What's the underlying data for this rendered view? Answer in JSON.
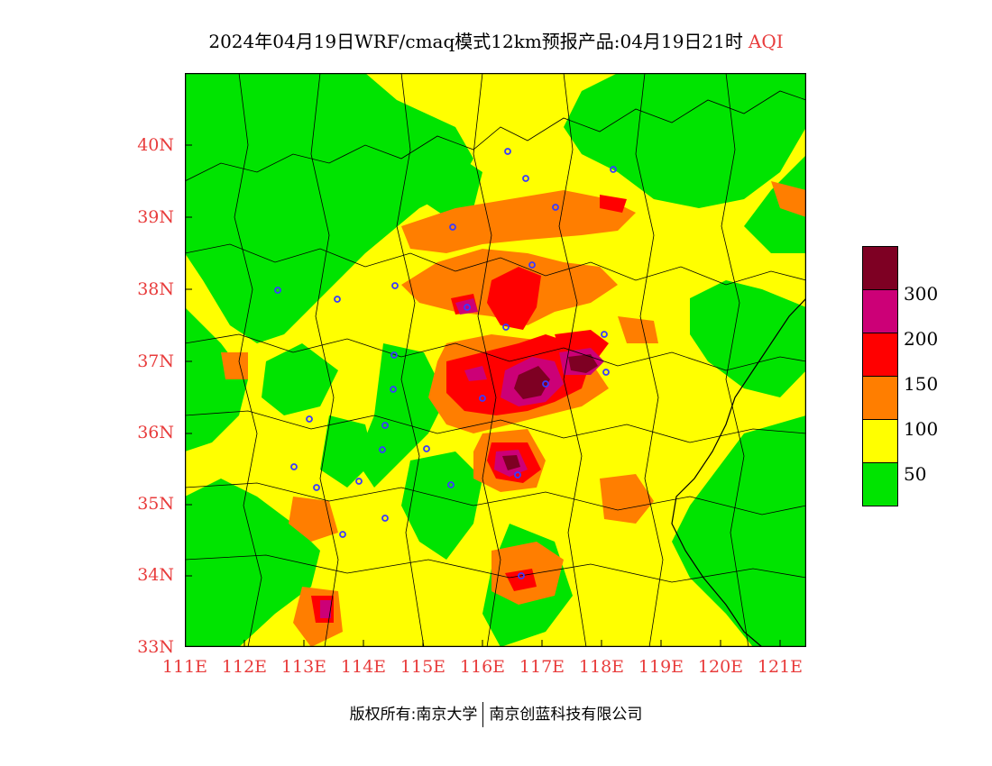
{
  "title": {
    "main": "2024年04月19日WRF/cmaq模式12km预报产品:04月19日21时",
    "variable": "AQI"
  },
  "colors": {
    "axis_label": "#e83c3c",
    "levels": [
      "#00e400",
      "#ffff00",
      "#ff7e00",
      "#ff0000",
      "#cc0077",
      "#7e0023"
    ],
    "city_marker": "#3a3aff",
    "boundary": "#000000"
  },
  "map": {
    "lon_range": [
      111,
      121.5
    ],
    "lat_range": [
      33,
      41
    ],
    "x_ticks": [
      "111E",
      "112E",
      "113E",
      "114E",
      "115E",
      "116E",
      "117E",
      "118E",
      "119E",
      "120E",
      "121E"
    ],
    "y_ticks": [
      "33N",
      "34N",
      "35N",
      "36N",
      "37N",
      "38N",
      "39N",
      "40N"
    ]
  },
  "colorbar": {
    "labels": [
      "50",
      "100",
      "150",
      "200",
      "300"
    ]
  },
  "footer": {
    "copyright": "版权所有:南京大学",
    "company": "南京创蓝科技有限公司"
  }
}
